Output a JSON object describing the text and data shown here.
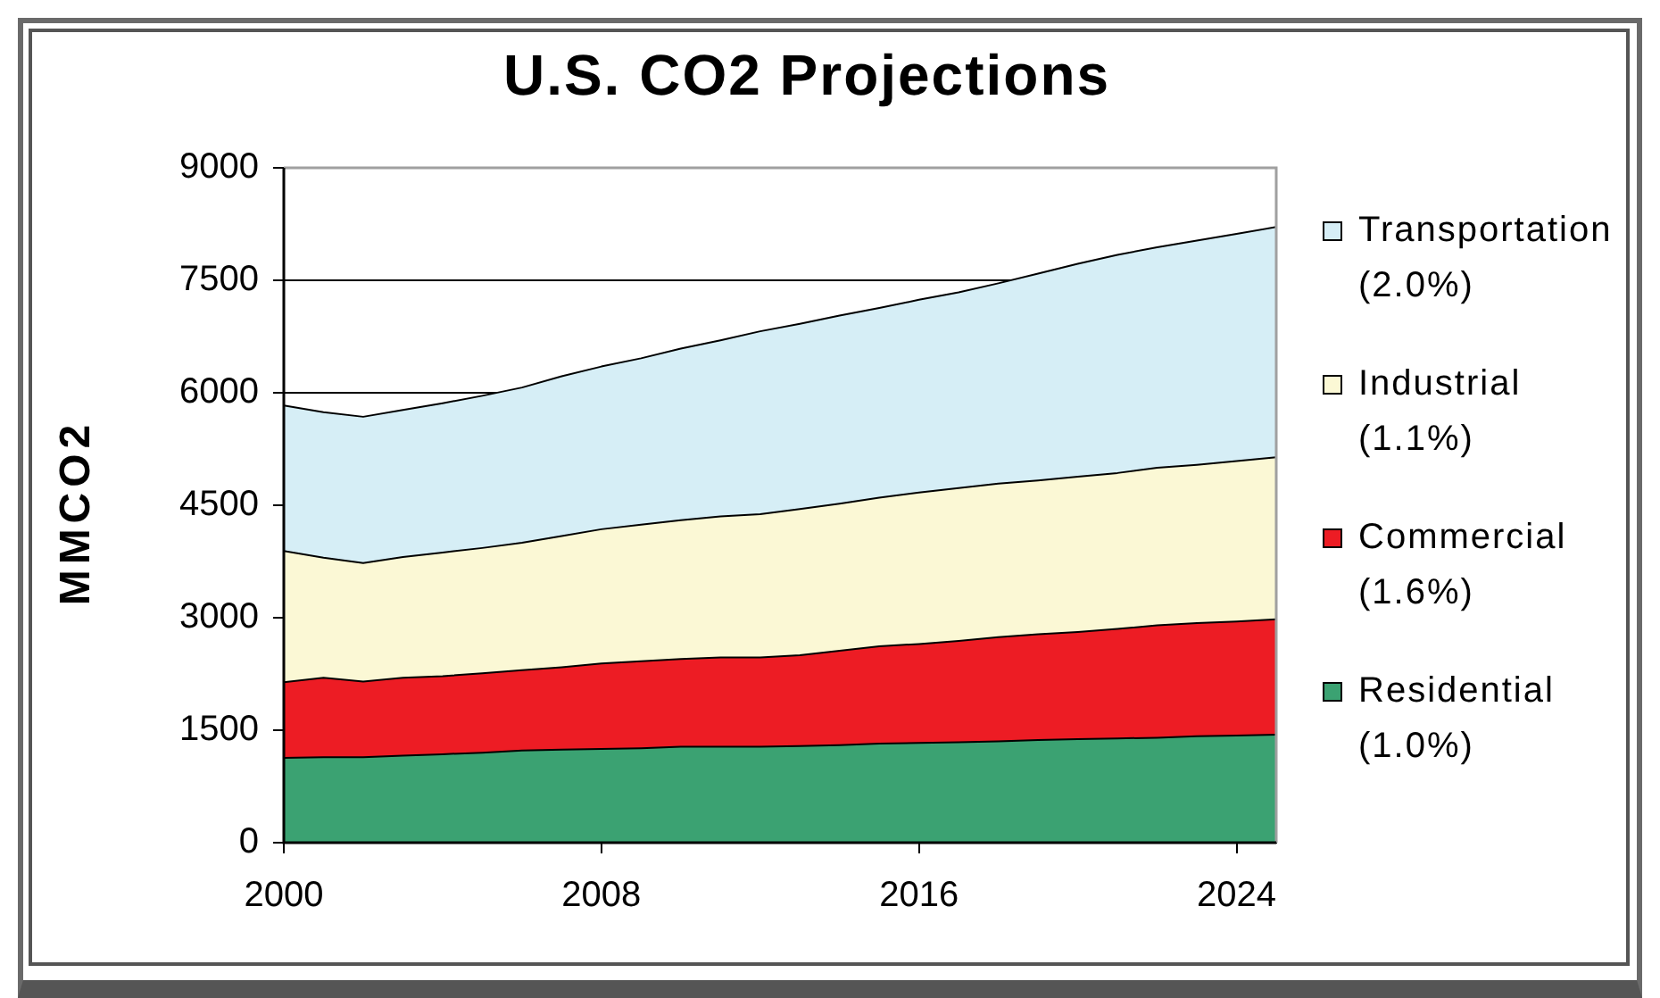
{
  "chart_data": {
    "type": "area",
    "title": "U.S. CO2 Projections",
    "ylabel": "MMCO2",
    "stacked": true,
    "x": [
      2000,
      2001,
      2002,
      2003,
      2004,
      2005,
      2006,
      2007,
      2008,
      2009,
      2010,
      2011,
      2012,
      2013,
      2014,
      2015,
      2016,
      2017,
      2018,
      2019,
      2020,
      2021,
      2022,
      2023,
      2024,
      2025
    ],
    "series": [
      {
        "name": "Residential (1.0%)",
        "color": "#3ba272",
        "values": [
          1130,
          1140,
          1140,
          1160,
          1180,
          1200,
          1230,
          1240,
          1250,
          1260,
          1280,
          1280,
          1280,
          1290,
          1300,
          1320,
          1330,
          1340,
          1350,
          1370,
          1380,
          1390,
          1400,
          1420,
          1430,
          1440
        ]
      },
      {
        "name": "Commercial (1.6%)",
        "color": "#ed1c24",
        "values": [
          1010,
          1060,
          1010,
          1040,
          1040,
          1060,
          1070,
          1100,
          1140,
          1160,
          1170,
          1190,
          1190,
          1210,
          1260,
          1300,
          1320,
          1350,
          1390,
          1410,
          1430,
          1460,
          1500,
          1510,
          1520,
          1540
        ]
      },
      {
        "name": "Industrial (1.1%)",
        "color": "#fbf8d5",
        "values": [
          1750,
          1600,
          1580,
          1610,
          1650,
          1670,
          1700,
          1750,
          1790,
          1820,
          1850,
          1880,
          1910,
          1950,
          1960,
          1980,
          2020,
          2040,
          2050,
          2050,
          2070,
          2080,
          2100,
          2110,
          2140,
          2160
        ]
      },
      {
        "name": "Transportation (2.0%)",
        "color": "#d6eef6",
        "values": [
          1940,
          1940,
          1950,
          1960,
          1990,
          2030,
          2070,
          2130,
          2170,
          2220,
          2290,
          2350,
          2440,
          2470,
          2510,
          2530,
          2570,
          2610,
          2670,
          2760,
          2840,
          2910,
          2940,
          2990,
          3030,
          3070
        ]
      }
    ],
    "xlim": [
      2000,
      2025
    ],
    "xticks": [
      2000,
      2008,
      2016,
      2024
    ],
    "ylim": [
      0,
      9000
    ],
    "yticks": [
      0,
      1500,
      3000,
      4500,
      6000,
      7500,
      9000
    ],
    "grid": "y",
    "legend": "right"
  }
}
